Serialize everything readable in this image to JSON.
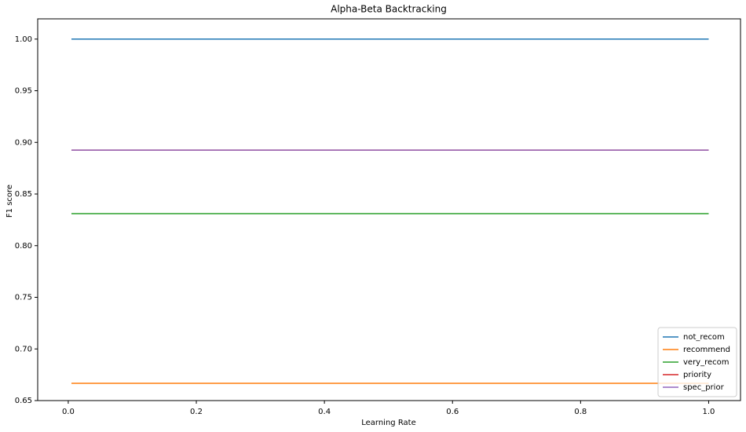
{
  "chart_data": {
    "type": "line",
    "title": "Alpha-Beta Backtracking",
    "x_label": "Learning Rate",
    "y_label": "F1 score",
    "x": [
      0.005,
      1.0
    ],
    "series": [
      {
        "name": "not_recom",
        "color": "#1f77b4",
        "values": [
          1.0,
          1.0
        ]
      },
      {
        "name": "recommend",
        "color": "#ff7f0e",
        "values": [
          0.6667,
          0.6667
        ]
      },
      {
        "name": "very_recom",
        "color": "#2ca02c",
        "values": [
          0.831,
          0.831
        ]
      },
      {
        "name": "priority",
        "color": "#d62728",
        "values": [
          0.8925,
          0.8925
        ]
      },
      {
        "name": "spec_prior",
        "color": "#9467bd",
        "values": [
          0.8925,
          0.8925
        ]
      }
    ],
    "xlim": [
      -0.0477,
      1.0497
    ],
    "ylim": [
      0.65,
      1.0196
    ],
    "xticks": [
      {
        "value": 0,
        "label": "0.0"
      },
      0.2,
      0.4,
      0.6,
      0.8,
      {
        "value": 1,
        "label": "1.0"
      }
    ],
    "yticks": [
      0.65,
      {
        "value": 0.7,
        "label": "0.70"
      },
      0.75,
      {
        "value": 0.8,
        "label": "0.80"
      },
      0.85,
      {
        "value": 0.9,
        "label": "0.90"
      },
      0.95,
      {
        "value": 1,
        "label": "1.00"
      }
    ],
    "grid": false,
    "legend": "lower right"
  }
}
